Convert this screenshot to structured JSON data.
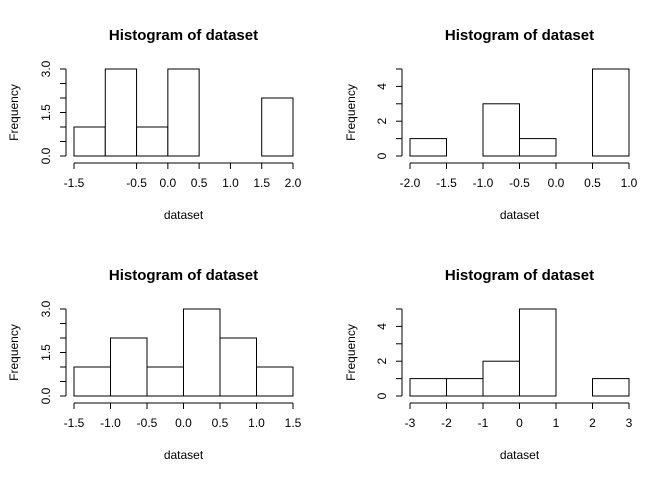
{
  "chart_data": [
    {
      "type": "bar",
      "title": "Histogram of dataset",
      "xlabel": "dataset",
      "ylabel": "Frequency",
      "bins": [
        [
          -1.5,
          -1.0
        ],
        [
          -1.0,
          -0.5
        ],
        [
          -0.5,
          0.0
        ],
        [
          0.0,
          0.5
        ],
        [
          0.5,
          1.0
        ],
        [
          1.0,
          1.5
        ],
        [
          1.5,
          2.0
        ]
      ],
      "values": [
        1,
        3,
        1,
        3,
        0,
        0,
        2
      ],
      "xlim": [
        -1.5,
        2.0
      ],
      "ylim": [
        0,
        3
      ],
      "x_ticks": [
        -1.5,
        -0.5,
        0.0,
        0.5,
        1.0,
        1.5,
        2.0
      ],
      "x_tick_labels": [
        "-1.5",
        "-0.5",
        "0.0",
        "0.5",
        "1.0",
        "1.5",
        "2.0"
      ],
      "y_ticks": [
        0,
        0.5,
        1.0,
        1.5,
        2.0,
        2.5,
        3.0
      ],
      "y_tick_labels": [
        "0.0",
        "",
        "",
        "1.5",
        "",
        "",
        "3.0"
      ]
    },
    {
      "type": "bar",
      "title": "Histogram of dataset",
      "xlabel": "dataset",
      "ylabel": "Frequency",
      "bins": [
        [
          -2.0,
          -1.5
        ],
        [
          -1.5,
          -1.0
        ],
        [
          -1.0,
          -0.5
        ],
        [
          -0.5,
          0.0
        ],
        [
          0.0,
          0.5
        ],
        [
          0.5,
          1.0
        ]
      ],
      "values": [
        1,
        0,
        3,
        1,
        0,
        5
      ],
      "xlim": [
        -2.0,
        1.0
      ],
      "ylim": [
        0,
        5
      ],
      "x_ticks": [
        -2.0,
        -1.5,
        -1.0,
        -0.5,
        0.0,
        0.5,
        1.0
      ],
      "x_tick_labels": [
        "-2.0",
        "-1.5",
        "-1.0",
        "-0.5",
        "0.0",
        "0.5",
        "1.0"
      ],
      "y_ticks": [
        0,
        1,
        2,
        3,
        4,
        5
      ],
      "y_tick_labels": [
        "0",
        "",
        "2",
        "",
        "4",
        ""
      ]
    },
    {
      "type": "bar",
      "title": "Histogram of dataset",
      "xlabel": "dataset",
      "ylabel": "Frequency",
      "bins": [
        [
          -1.5,
          -1.0
        ],
        [
          -1.0,
          -0.5
        ],
        [
          -0.5,
          0.0
        ],
        [
          0.0,
          0.5
        ],
        [
          0.5,
          1.0
        ],
        [
          1.0,
          1.5
        ]
      ],
      "values": [
        1,
        2,
        1,
        3,
        2,
        1
      ],
      "xlim": [
        -1.5,
        1.5
      ],
      "ylim": [
        0,
        3
      ],
      "x_ticks": [
        -1.5,
        -1.0,
        -0.5,
        0.0,
        0.5,
        1.0,
        1.5
      ],
      "x_tick_labels": [
        "-1.5",
        "-1.0",
        "-0.5",
        "0.0",
        "0.5",
        "1.0",
        "1.5"
      ],
      "y_ticks": [
        0,
        0.5,
        1.0,
        1.5,
        2.0,
        2.5,
        3.0
      ],
      "y_tick_labels": [
        "0.0",
        "",
        "",
        "1.5",
        "",
        "",
        "3.0"
      ]
    },
    {
      "type": "bar",
      "title": "Histogram of dataset",
      "xlabel": "dataset",
      "ylabel": "Frequency",
      "bins": [
        [
          -3,
          -2
        ],
        [
          -2,
          -1
        ],
        [
          -1,
          0
        ],
        [
          0,
          1
        ],
        [
          1,
          2
        ],
        [
          2,
          3
        ]
      ],
      "values": [
        1,
        1,
        2,
        5,
        0,
        1
      ],
      "xlim": [
        -3,
        3
      ],
      "ylim": [
        0,
        5
      ],
      "x_ticks": [
        -3,
        -2,
        -1,
        0,
        1,
        2,
        3
      ],
      "x_tick_labels": [
        "-3",
        "-2",
        "-1",
        "0",
        "1",
        "2",
        "3"
      ],
      "y_ticks": [
        0,
        1,
        2,
        3,
        4,
        5
      ],
      "y_tick_labels": [
        "0",
        "",
        "2",
        "",
        "4",
        ""
      ]
    }
  ]
}
